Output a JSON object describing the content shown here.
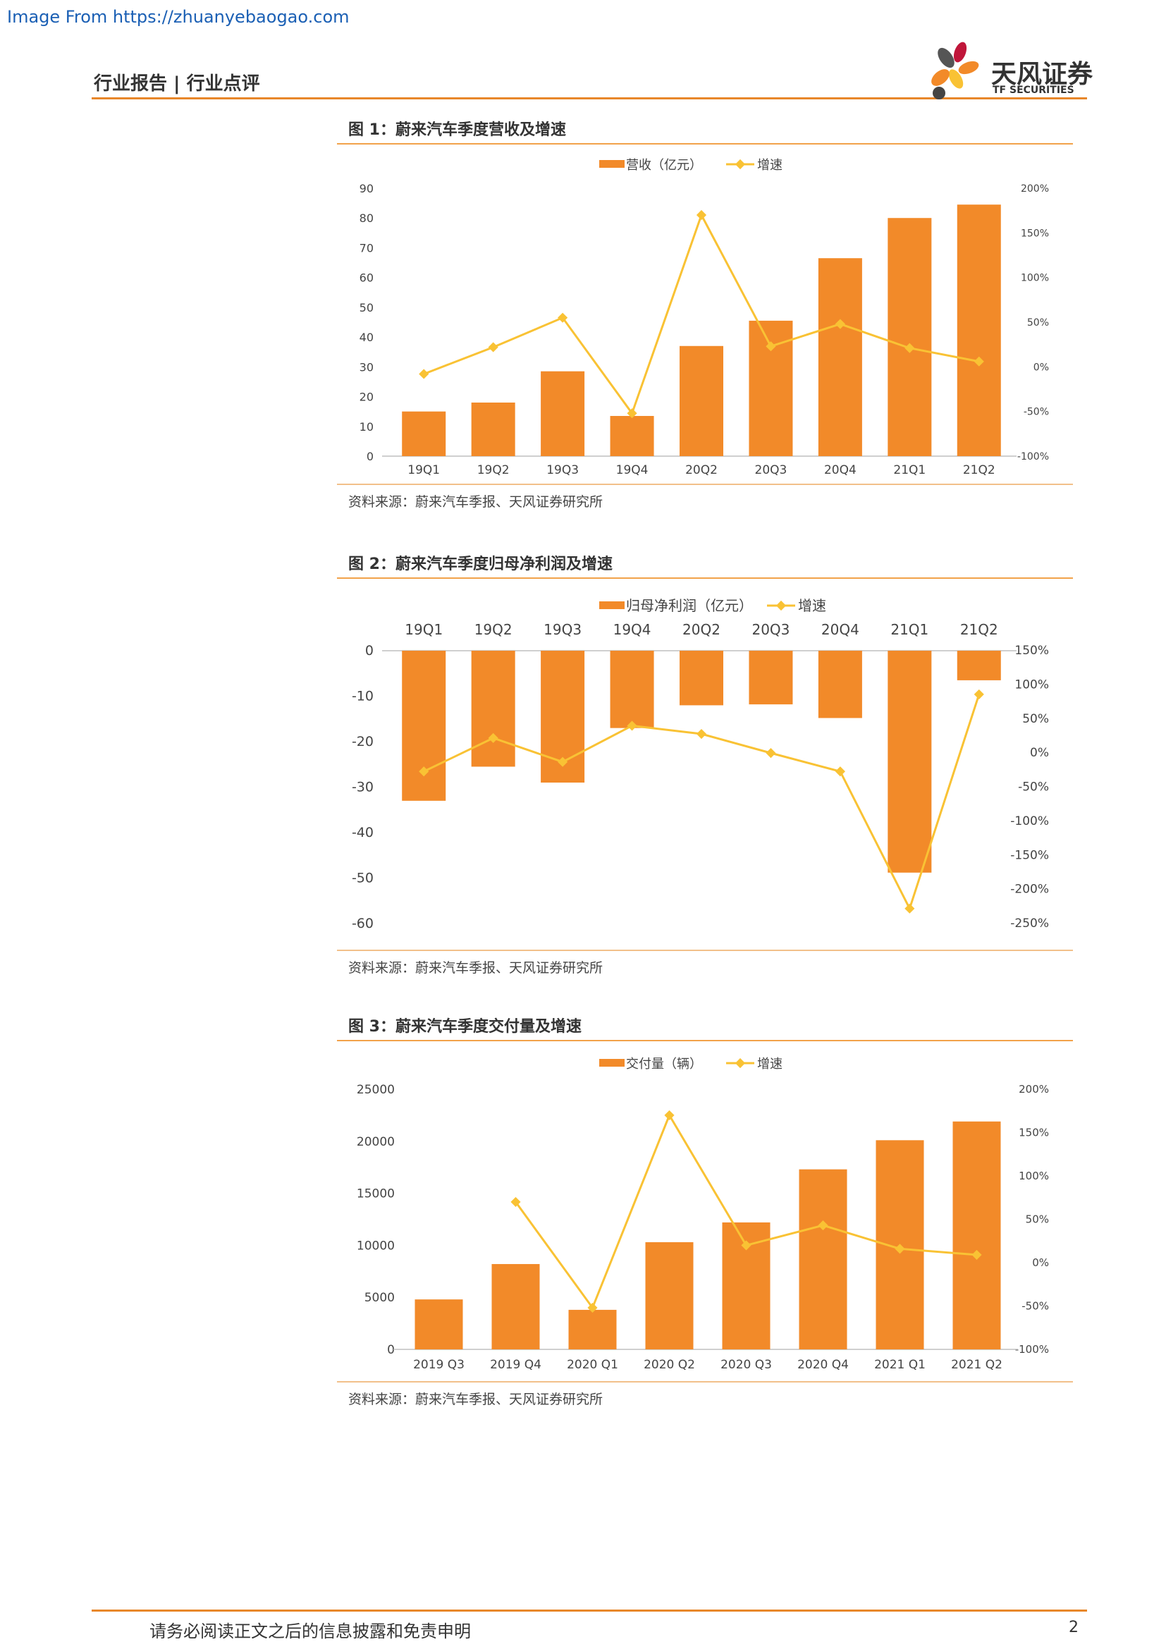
{
  "watermark": "Image From https://zhuanyebaogao.com",
  "header": {
    "title": "行业报告 | 行业点评"
  },
  "logo": {
    "cn": "天风证券",
    "en": "TF SECURITIES"
  },
  "colors": {
    "bar": "#f28a29",
    "line": "#f9c234",
    "accent": "#e8872a"
  },
  "footer": {
    "disclaimer": "请务必阅读正文之后的信息披露和免责申明",
    "page": "2"
  },
  "charts": [
    {
      "title": "图 1：蔚来汽车季度营收及增速",
      "source": "资料来源：蔚来汽车季报、天风证券研究所",
      "bar_legend": "营收（亿元）",
      "line_legend": "增速"
    },
    {
      "title": "图 2：蔚来汽车季度归母净利润及增速",
      "source": "资料来源：蔚来汽车季报、天风证券研究所",
      "bar_legend": "归母净利润（亿元）",
      "line_legend": "增速"
    },
    {
      "title": "图 3：蔚来汽车季度交付量及增速",
      "source": "资料来源：蔚来汽车季报、天风证券研究所",
      "bar_legend": "交付量（辆）",
      "line_legend": "增速"
    }
  ],
  "chart_data": [
    {
      "type": "bar",
      "categories": [
        "19Q1",
        "19Q2",
        "19Q3",
        "19Q4",
        "20Q2",
        "20Q3",
        "20Q4",
        "21Q1",
        "21Q2"
      ],
      "series": [
        {
          "name": "营收（亿元）",
          "axis": "left",
          "values": [
            15,
            18,
            28.5,
            13.5,
            37,
            45.5,
            66.5,
            80,
            84.5
          ]
        },
        {
          "name": "增速",
          "axis": "right",
          "type": "line",
          "values": [
            -8,
            22,
            55,
            -52,
            170,
            23,
            48,
            21,
            6
          ]
        }
      ],
      "ylim": [
        0,
        90
      ],
      "yticks": [
        0,
        10,
        20,
        30,
        40,
        50,
        60,
        70,
        80,
        90
      ],
      "y2lim": [
        -100,
        200
      ],
      "y2ticks": [
        -100,
        -50,
        0,
        50,
        100,
        150,
        200
      ],
      "legend": "top",
      "grid": false
    },
    {
      "type": "bar",
      "categories": [
        "19Q1",
        "19Q2",
        "19Q3",
        "19Q4",
        "20Q2",
        "20Q3",
        "20Q4",
        "21Q1",
        "21Q2"
      ],
      "x_axis_position": "top",
      "series": [
        {
          "name": "归母净利润（亿元）",
          "axis": "left",
          "values": [
            -33,
            -25.5,
            -29,
            -17,
            -12,
            -11.8,
            -14.8,
            -48.8,
            -6.5
          ]
        },
        {
          "name": "增速",
          "axis": "right",
          "type": "line",
          "values": [
            -27,
            22,
            -13,
            40,
            28,
            0,
            -27,
            -228,
            86
          ]
        }
      ],
      "ylim": [
        -60,
        0
      ],
      "yticks": [
        0,
        -10,
        -20,
        -30,
        -40,
        -50,
        -60
      ],
      "y2lim": [
        -250,
        150
      ],
      "y2ticks": [
        150,
        100,
        50,
        0,
        -50,
        -100,
        -150,
        -200,
        -250
      ],
      "legend": "top",
      "grid": false
    },
    {
      "type": "bar",
      "categories": [
        "2019 Q3",
        "2019 Q4",
        "2020 Q1",
        "2020 Q2",
        "2020 Q3",
        "2020 Q4",
        "2021 Q1",
        "2021 Q2"
      ],
      "series": [
        {
          "name": "交付量（辆）",
          "axis": "left",
          "values": [
            4800,
            8200,
            3800,
            10300,
            12200,
            17300,
            20100,
            21900
          ]
        },
        {
          "name": "增速",
          "axis": "right",
          "type": "line",
          "values": [
            null,
            70,
            -52,
            170,
            20,
            43,
            16,
            9
          ]
        }
      ],
      "ylim": [
        0,
        25000
      ],
      "yticks": [
        0,
        5000,
        10000,
        15000,
        20000,
        25000
      ],
      "y2lim": [
        -100,
        200
      ],
      "y2ticks": [
        -100,
        -50,
        0,
        50,
        100,
        150,
        200
      ],
      "legend": "top",
      "grid": false
    }
  ]
}
